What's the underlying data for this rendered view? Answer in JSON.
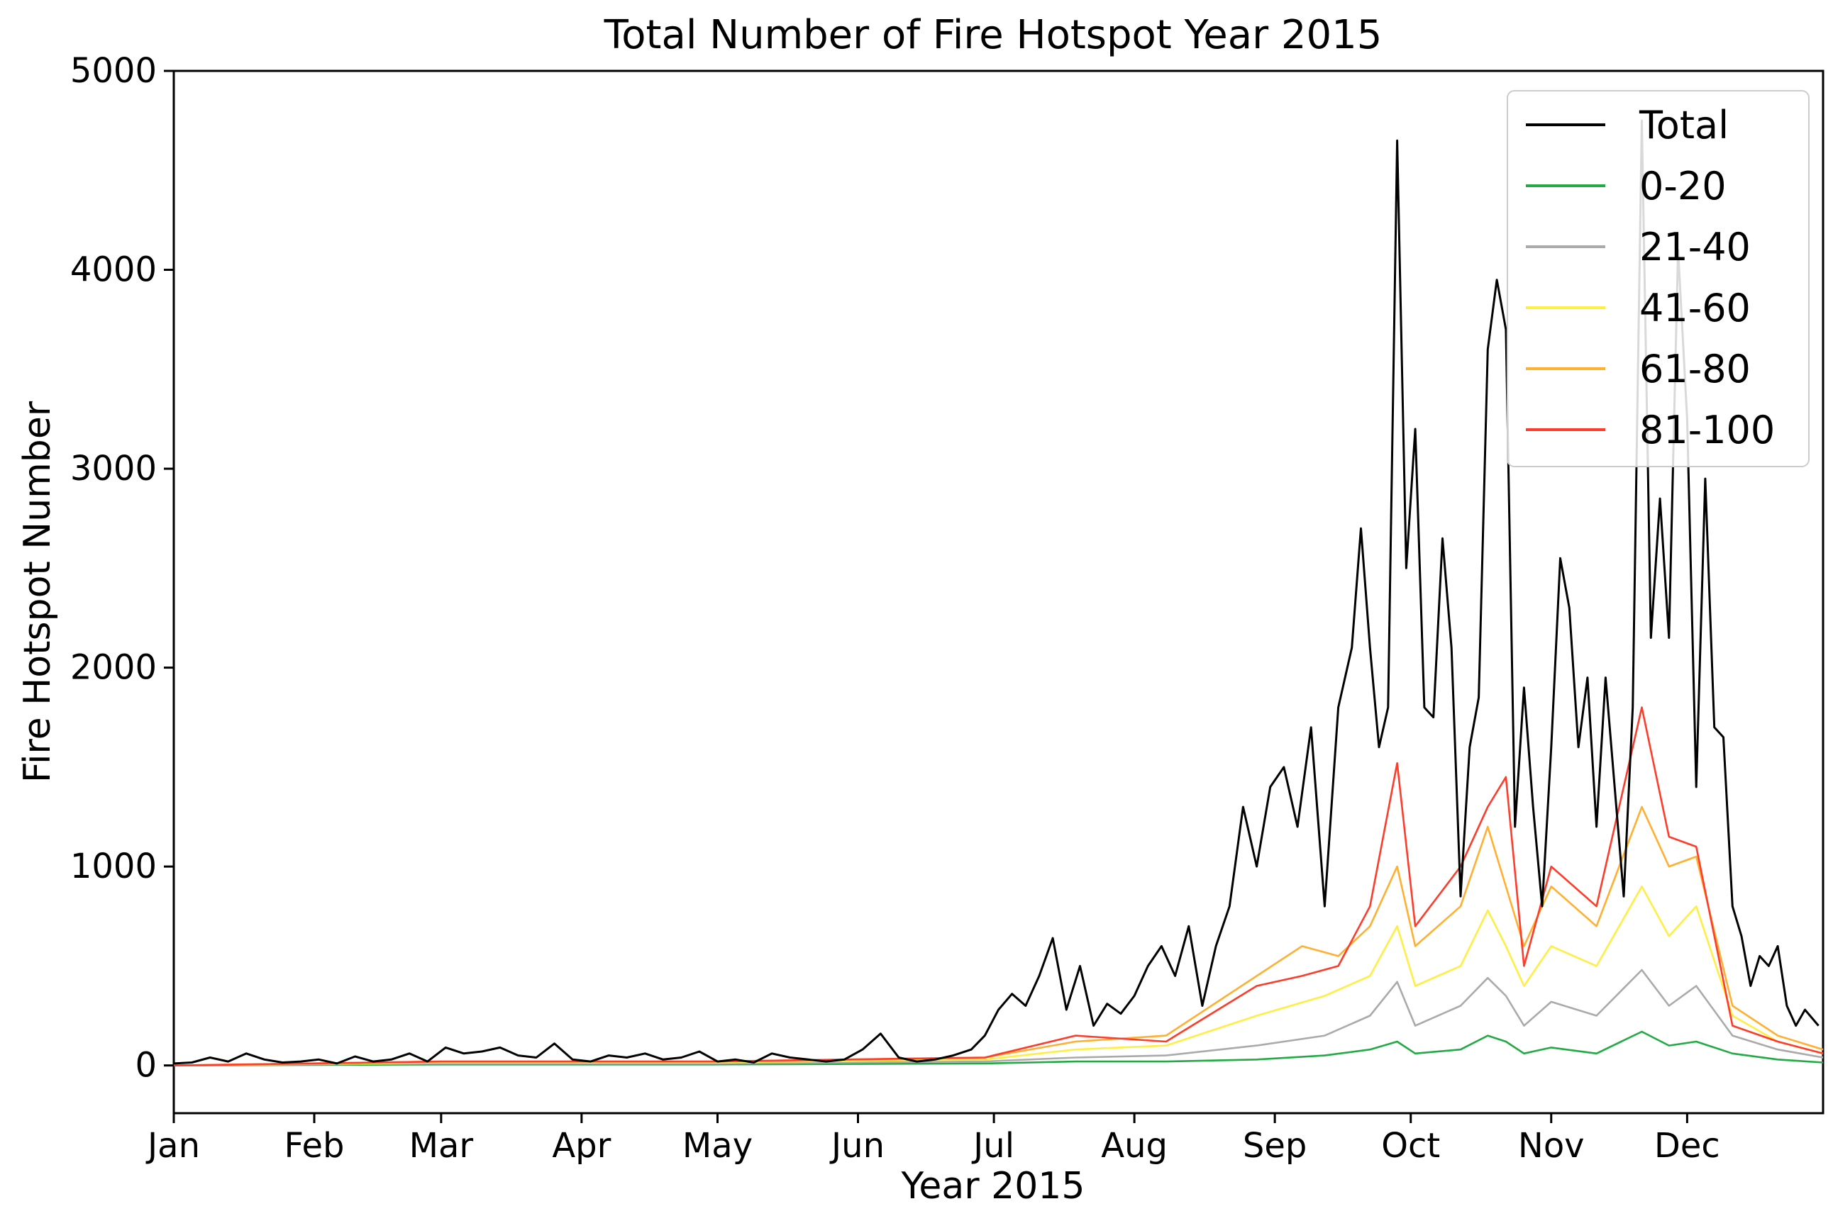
{
  "chart_data": {
    "type": "line",
    "title": "Total Number of Fire Hotspot Year 2015",
    "xlabel": "Year 2015",
    "ylabel": "Fire Hotspot Number",
    "x_ticks": [
      "Jan",
      "Feb",
      "Mar",
      "Apr",
      "May",
      "Jun",
      "Jul",
      "Aug",
      "Sep",
      "Oct",
      "Nov",
      "Dec"
    ],
    "y_ticks": [
      0,
      1000,
      2000,
      3000,
      4000,
      5000
    ],
    "xlim": [
      "2015-01-01",
      "2015-12-31"
    ],
    "ylim": [
      -240,
      5000
    ],
    "grid": false,
    "legend_position": "top-right",
    "x_unit": "day of year 2015",
    "series": [
      {
        "name": "Total",
        "color": "#000000",
        "points": [
          [
            1,
            10
          ],
          [
            5,
            15
          ],
          [
            9,
            40
          ],
          [
            13,
            20
          ],
          [
            17,
            60
          ],
          [
            21,
            30
          ],
          [
            25,
            15
          ],
          [
            29,
            20
          ],
          [
            33,
            30
          ],
          [
            37,
            10
          ],
          [
            41,
            45
          ],
          [
            45,
            20
          ],
          [
            49,
            30
          ],
          [
            53,
            60
          ],
          [
            57,
            20
          ],
          [
            61,
            90
          ],
          [
            65,
            60
          ],
          [
            69,
            70
          ],
          [
            73,
            90
          ],
          [
            77,
            50
          ],
          [
            81,
            40
          ],
          [
            85,
            110
          ],
          [
            89,
            30
          ],
          [
            93,
            20
          ],
          [
            97,
            50
          ],
          [
            101,
            40
          ],
          [
            105,
            60
          ],
          [
            109,
            30
          ],
          [
            113,
            40
          ],
          [
            117,
            70
          ],
          [
            121,
            20
          ],
          [
            125,
            30
          ],
          [
            129,
            15
          ],
          [
            133,
            60
          ],
          [
            137,
            40
          ],
          [
            141,
            30
          ],
          [
            145,
            20
          ],
          [
            149,
            30
          ],
          [
            153,
            80
          ],
          [
            157,
            160
          ],
          [
            161,
            40
          ],
          [
            165,
            20
          ],
          [
            169,
            30
          ],
          [
            173,
            50
          ],
          [
            177,
            80
          ],
          [
            180,
            150
          ],
          [
            183,
            280
          ],
          [
            186,
            360
          ],
          [
            189,
            300
          ],
          [
            192,
            450
          ],
          [
            195,
            640
          ],
          [
            198,
            280
          ],
          [
            201,
            500
          ],
          [
            204,
            200
          ],
          [
            207,
            310
          ],
          [
            210,
            260
          ],
          [
            213,
            350
          ],
          [
            216,
            500
          ],
          [
            219,
            600
          ],
          [
            222,
            450
          ],
          [
            225,
            700
          ],
          [
            228,
            300
          ],
          [
            231,
            600
          ],
          [
            234,
            800
          ],
          [
            237,
            1300
          ],
          [
            240,
            1000
          ],
          [
            243,
            1400
          ],
          [
            246,
            1500
          ],
          [
            249,
            1200
          ],
          [
            252,
            1700
          ],
          [
            255,
            800
          ],
          [
            258,
            1800
          ],
          [
            261,
            2100
          ],
          [
            263,
            2700
          ],
          [
            265,
            2100
          ],
          [
            267,
            1600
          ],
          [
            269,
            1800
          ],
          [
            271,
            4650
          ],
          [
            273,
            2500
          ],
          [
            275,
            3200
          ],
          [
            277,
            1800
          ],
          [
            279,
            1750
          ],
          [
            281,
            2650
          ],
          [
            283,
            2100
          ],
          [
            285,
            850
          ],
          [
            287,
            1600
          ],
          [
            289,
            1850
          ],
          [
            291,
            3600
          ],
          [
            293,
            3950
          ],
          [
            295,
            3700
          ],
          [
            297,
            1200
          ],
          [
            299,
            1900
          ],
          [
            301,
            1300
          ],
          [
            303,
            800
          ],
          [
            305,
            1600
          ],
          [
            307,
            2550
          ],
          [
            309,
            2300
          ],
          [
            311,
            1600
          ],
          [
            313,
            1950
          ],
          [
            315,
            1200
          ],
          [
            317,
            1950
          ],
          [
            319,
            1400
          ],
          [
            321,
            850
          ],
          [
            323,
            1800
          ],
          [
            325,
            4750
          ],
          [
            327,
            2150
          ],
          [
            329,
            2850
          ],
          [
            331,
            2150
          ],
          [
            333,
            4100
          ],
          [
            335,
            3250
          ],
          [
            337,
            1400
          ],
          [
            339,
            2950
          ],
          [
            341,
            1700
          ],
          [
            343,
            1650
          ],
          [
            345,
            800
          ],
          [
            347,
            650
          ],
          [
            349,
            400
          ],
          [
            351,
            550
          ],
          [
            353,
            500
          ],
          [
            355,
            600
          ],
          [
            357,
            300
          ],
          [
            359,
            200
          ],
          [
            361,
            280
          ],
          [
            364,
            200
          ]
        ]
      },
      {
        "name": "0-20",
        "color": "#22aa44",
        "points": [
          [
            1,
            0
          ],
          [
            60,
            5
          ],
          [
            120,
            5
          ],
          [
            180,
            10
          ],
          [
            200,
            20
          ],
          [
            220,
            20
          ],
          [
            240,
            30
          ],
          [
            255,
            50
          ],
          [
            265,
            80
          ],
          [
            271,
            120
          ],
          [
            275,
            60
          ],
          [
            285,
            80
          ],
          [
            291,
            150
          ],
          [
            295,
            120
          ],
          [
            299,
            60
          ],
          [
            305,
            90
          ],
          [
            315,
            60
          ],
          [
            325,
            170
          ],
          [
            331,
            100
          ],
          [
            337,
            120
          ],
          [
            345,
            60
          ],
          [
            355,
            30
          ],
          [
            365,
            15
          ]
        ]
      },
      {
        "name": "21-40",
        "color": "#aaaaaa",
        "points": [
          [
            1,
            0
          ],
          [
            60,
            10
          ],
          [
            120,
            10
          ],
          [
            180,
            20
          ],
          [
            200,
            40
          ],
          [
            220,
            50
          ],
          [
            240,
            100
          ],
          [
            255,
            150
          ],
          [
            265,
            250
          ],
          [
            271,
            420
          ],
          [
            275,
            200
          ],
          [
            285,
            300
          ],
          [
            291,
            440
          ],
          [
            295,
            350
          ],
          [
            299,
            200
          ],
          [
            305,
            320
          ],
          [
            315,
            250
          ],
          [
            325,
            480
          ],
          [
            331,
            300
          ],
          [
            337,
            400
          ],
          [
            345,
            150
          ],
          [
            355,
            80
          ],
          [
            365,
            40
          ]
        ]
      },
      {
        "name": "41-60",
        "color": "#ffee44",
        "points": [
          [
            1,
            0
          ],
          [
            60,
            15
          ],
          [
            120,
            15
          ],
          [
            180,
            30
          ],
          [
            200,
            80
          ],
          [
            220,
            100
          ],
          [
            240,
            250
          ],
          [
            255,
            350
          ],
          [
            265,
            450
          ],
          [
            271,
            700
          ],
          [
            275,
            400
          ],
          [
            285,
            500
          ],
          [
            291,
            780
          ],
          [
            295,
            600
          ],
          [
            299,
            400
          ],
          [
            305,
            600
          ],
          [
            315,
            500
          ],
          [
            325,
            900
          ],
          [
            331,
            650
          ],
          [
            337,
            800
          ],
          [
            345,
            250
          ],
          [
            355,
            120
          ],
          [
            365,
            60
          ]
        ]
      },
      {
        "name": "61-80",
        "color": "#ffb030",
        "points": [
          [
            1,
            0
          ],
          [
            60,
            20
          ],
          [
            120,
            20
          ],
          [
            180,
            40
          ],
          [
            200,
            120
          ],
          [
            220,
            150
          ],
          [
            240,
            450
          ],
          [
            250,
            600
          ],
          [
            258,
            550
          ],
          [
            265,
            700
          ],
          [
            271,
            1000
          ],
          [
            275,
            600
          ],
          [
            285,
            800
          ],
          [
            291,
            1200
          ],
          [
            295,
            900
          ],
          [
            299,
            600
          ],
          [
            305,
            900
          ],
          [
            315,
            700
          ],
          [
            325,
            1300
          ],
          [
            331,
            1000
          ],
          [
            337,
            1050
          ],
          [
            345,
            300
          ],
          [
            355,
            150
          ],
          [
            365,
            80
          ]
        ]
      },
      {
        "name": "81-100",
        "color": "#ff3b2a",
        "points": [
          [
            1,
            0
          ],
          [
            60,
            20
          ],
          [
            120,
            20
          ],
          [
            180,
            40
          ],
          [
            200,
            150
          ],
          [
            220,
            120
          ],
          [
            240,
            400
          ],
          [
            250,
            450
          ],
          [
            258,
            500
          ],
          [
            265,
            800
          ],
          [
            271,
            1520
          ],
          [
            275,
            700
          ],
          [
            285,
            1000
          ],
          [
            291,
            1300
          ],
          [
            295,
            1450
          ],
          [
            299,
            500
          ],
          [
            305,
            1000
          ],
          [
            315,
            800
          ],
          [
            325,
            1800
          ],
          [
            331,
            1150
          ],
          [
            337,
            1100
          ],
          [
            345,
            200
          ],
          [
            355,
            120
          ],
          [
            365,
            60
          ]
        ]
      }
    ]
  }
}
